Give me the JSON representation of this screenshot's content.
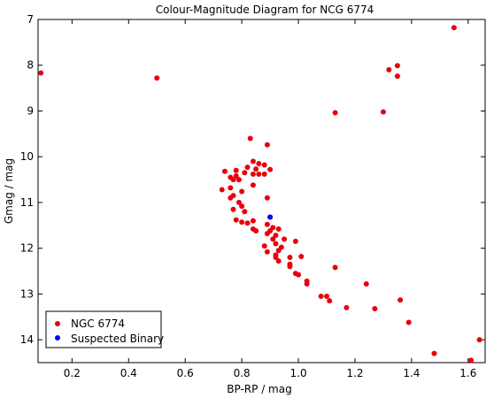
{
  "chart_data": {
    "type": "scatter",
    "title": "Colour-Magnitude Diagram for NCG 6774",
    "xlabel": "BP-RP / mag",
    "ylabel": "Gmag / mag",
    "xlim": [
      0.08,
      1.66
    ],
    "ylim": [
      7.0,
      14.5
    ],
    "y_inverted": true,
    "xticks": [
      0.2,
      0.4,
      0.6,
      0.8,
      1.0,
      1.2,
      1.4,
      1.6
    ],
    "xtick_labels": [
      "0.2",
      "0.4",
      "0.6",
      "0.8",
      "1.0",
      "1.2",
      "1.4",
      "1.6"
    ],
    "yticks": [
      7,
      8,
      9,
      10,
      11,
      12,
      13,
      14
    ],
    "ytick_labels": [
      "7",
      "8",
      "9",
      "10",
      "11",
      "12",
      "13",
      "14"
    ],
    "grid": false,
    "legend_position": "bottom-left",
    "series": [
      {
        "name": "NGC 6774",
        "color": "#e8000b",
        "points": [
          [
            0.09,
            8.17
          ],
          [
            0.5,
            8.28
          ],
          [
            1.55,
            7.18
          ],
          [
            1.32,
            8.1
          ],
          [
            1.35,
            8.01
          ],
          [
            1.35,
            8.24
          ],
          [
            1.13,
            9.04
          ],
          [
            1.3,
            9.02
          ],
          [
            0.83,
            9.6
          ],
          [
            0.89,
            9.74
          ],
          [
            0.86,
            10.15
          ],
          [
            0.88,
            10.18
          ],
          [
            0.84,
            10.1
          ],
          [
            0.82,
            10.23
          ],
          [
            0.85,
            10.27
          ],
          [
            0.9,
            10.28
          ],
          [
            0.78,
            10.3
          ],
          [
            0.74,
            10.32
          ],
          [
            0.81,
            10.35
          ],
          [
            0.84,
            10.38
          ],
          [
            0.86,
            10.38
          ],
          [
            0.88,
            10.38
          ],
          [
            0.76,
            10.45
          ],
          [
            0.78,
            10.42
          ],
          [
            0.77,
            10.5
          ],
          [
            0.79,
            10.5
          ],
          [
            0.84,
            10.62
          ],
          [
            0.76,
            10.68
          ],
          [
            0.73,
            10.72
          ],
          [
            0.8,
            10.76
          ],
          [
            0.77,
            10.85
          ],
          [
            0.76,
            10.9
          ],
          [
            0.89,
            10.9
          ],
          [
            0.79,
            11.0
          ],
          [
            0.8,
            11.08
          ],
          [
            0.77,
            11.15
          ],
          [
            0.81,
            11.2
          ],
          [
            0.9,
            11.32
          ],
          [
            0.78,
            11.38
          ],
          [
            0.8,
            11.43
          ],
          [
            0.84,
            11.4
          ],
          [
            0.82,
            11.45
          ],
          [
            0.89,
            11.48
          ],
          [
            0.84,
            11.58
          ],
          [
            0.85,
            11.62
          ],
          [
            0.91,
            11.55
          ],
          [
            0.93,
            11.58
          ],
          [
            0.9,
            11.62
          ],
          [
            0.89,
            11.68
          ],
          [
            0.92,
            11.72
          ],
          [
            0.91,
            11.8
          ],
          [
            0.95,
            11.8
          ],
          [
            0.92,
            11.9
          ],
          [
            0.99,
            11.85
          ],
          [
            0.88,
            11.95
          ],
          [
            0.94,
            11.98
          ],
          [
            0.93,
            12.05
          ],
          [
            0.89,
            12.08
          ],
          [
            0.92,
            12.15
          ],
          [
            0.92,
            12.2
          ],
          [
            0.93,
            12.28
          ],
          [
            0.97,
            12.2
          ],
          [
            1.01,
            12.18
          ],
          [
            0.97,
            12.35
          ],
          [
            0.97,
            12.4
          ],
          [
            1.13,
            12.42
          ],
          [
            0.99,
            12.55
          ],
          [
            1.0,
            12.58
          ],
          [
            1.03,
            12.72
          ],
          [
            1.03,
            12.78
          ],
          [
            1.24,
            12.78
          ],
          [
            1.08,
            13.05
          ],
          [
            1.1,
            13.05
          ],
          [
            1.11,
            13.15
          ],
          [
            1.36,
            13.13
          ],
          [
            1.17,
            13.3
          ],
          [
            1.27,
            13.32
          ],
          [
            1.39,
            13.62
          ],
          [
            1.64,
            14.0
          ],
          [
            1.48,
            14.3
          ],
          [
            1.61,
            14.45
          ]
        ]
      },
      {
        "name": "Suspected Binary",
        "color": "#0000ff",
        "points": [
          [
            0.9,
            11.32
          ]
        ]
      }
    ]
  }
}
